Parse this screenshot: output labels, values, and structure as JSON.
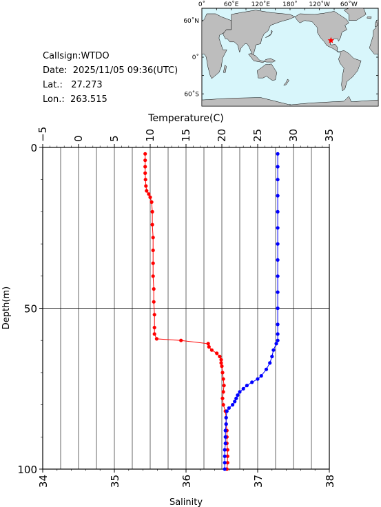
{
  "info": {
    "callsign": "Callsign:WTDO",
    "date": "Date:  2025/11/05 09:36(UTC)",
    "lat": "Lat.:   27.273",
    "lon": "Lon.:  263.515"
  },
  "map": {
    "lon_labels": [
      "0˚",
      "60˚E",
      "120˚E",
      "180˚",
      "120˚W",
      "60˚W"
    ],
    "lat_labels": [
      "60˚N",
      "0˚",
      "60˚S"
    ],
    "colors": {
      "ocean": "#d8f6fb",
      "land": "#bdbdbd",
      "marker": "#ff0000"
    },
    "marker_icon": "star-icon"
  },
  "chart_data": {
    "type": "line",
    "xlabel_top": "Temperature(C)",
    "xlabel_bottom": "Salinity",
    "ylabel": "Depth(m)",
    "temperature_axis": {
      "range": [
        -5,
        35
      ],
      "ticks": [
        "−5",
        "0",
        "5",
        "10",
        "15",
        "20",
        "25",
        "30",
        "35"
      ]
    },
    "salinity_axis": {
      "range": [
        34,
        38
      ],
      "ticks": [
        "34",
        "35",
        "36",
        "37",
        "38"
      ]
    },
    "depth_axis": {
      "range": [
        0,
        100
      ],
      "ticks": [
        "0",
        "50",
        "100"
      ]
    },
    "grid": true,
    "series": [
      {
        "color": "#ff0000",
        "axis": "temperature",
        "points": [
          [
            9.3,
            2
          ],
          [
            9.3,
            4
          ],
          [
            9.3,
            6
          ],
          [
            9.3,
            8
          ],
          [
            9.35,
            10
          ],
          [
            9.4,
            12
          ],
          [
            9.5,
            13.5
          ],
          [
            9.8,
            14.5
          ],
          [
            10.0,
            15.5
          ],
          [
            10.2,
            17
          ],
          [
            10.3,
            20
          ],
          [
            10.3,
            24
          ],
          [
            10.4,
            28
          ],
          [
            10.4,
            32
          ],
          [
            10.4,
            36
          ],
          [
            10.4,
            40
          ],
          [
            10.5,
            44
          ],
          [
            10.5,
            48
          ],
          [
            10.6,
            52
          ],
          [
            10.6,
            56
          ],
          [
            10.6,
            58
          ],
          [
            10.9,
            59.5
          ],
          [
            14.3,
            60
          ],
          [
            18.1,
            61
          ],
          [
            18.2,
            62
          ],
          [
            18.6,
            63
          ],
          [
            19.3,
            64
          ],
          [
            19.7,
            65
          ],
          [
            19.9,
            66
          ],
          [
            19.9,
            67
          ],
          [
            20.0,
            68
          ],
          [
            20.1,
            70
          ],
          [
            20.2,
            72
          ],
          [
            20.3,
            74
          ],
          [
            20.2,
            76
          ],
          [
            20.1,
            78
          ],
          [
            20.2,
            80
          ],
          [
            20.5,
            82
          ],
          [
            20.6,
            84
          ],
          [
            20.6,
            86
          ],
          [
            20.7,
            88
          ],
          [
            20.7,
            90
          ],
          [
            20.7,
            92
          ],
          [
            20.8,
            94
          ],
          [
            20.8,
            96
          ],
          [
            20.8,
            98
          ],
          [
            20.7,
            100
          ]
        ]
      },
      {
        "color": "#0000ff",
        "axis": "salinity",
        "points": [
          [
            37.28,
            2
          ],
          [
            37.28,
            6
          ],
          [
            37.28,
            10
          ],
          [
            37.28,
            15
          ],
          [
            37.28,
            20
          ],
          [
            37.28,
            25
          ],
          [
            37.28,
            30
          ],
          [
            37.28,
            35
          ],
          [
            37.28,
            40
          ],
          [
            37.28,
            45
          ],
          [
            37.28,
            50
          ],
          [
            37.28,
            55
          ],
          [
            37.28,
            58
          ],
          [
            37.28,
            60
          ],
          [
            37.26,
            61
          ],
          [
            37.22,
            63
          ],
          [
            37.2,
            65
          ],
          [
            37.17,
            67
          ],
          [
            37.12,
            69
          ],
          [
            37.05,
            71
          ],
          [
            37.0,
            72
          ],
          [
            36.92,
            73
          ],
          [
            36.85,
            74
          ],
          [
            36.8,
            75
          ],
          [
            36.75,
            76
          ],
          [
            36.72,
            77
          ],
          [
            36.7,
            78
          ],
          [
            36.68,
            79
          ],
          [
            36.65,
            80
          ],
          [
            36.6,
            81
          ],
          [
            36.57,
            82
          ],
          [
            36.56,
            84
          ],
          [
            36.56,
            86
          ],
          [
            36.55,
            88
          ],
          [
            36.55,
            90
          ],
          [
            36.55,
            92
          ],
          [
            36.54,
            94
          ],
          [
            36.54,
            96
          ],
          [
            36.54,
            98
          ],
          [
            36.54,
            100
          ]
        ]
      }
    ]
  }
}
